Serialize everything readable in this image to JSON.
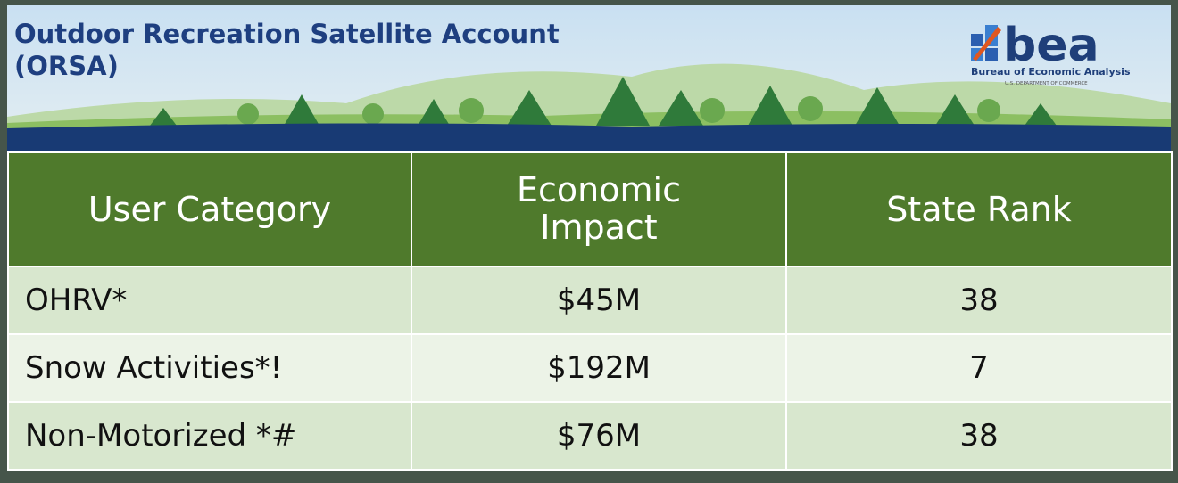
{
  "header": {
    "title": [
      "Outdoor Recreation Satellite Account",
      "(ORSA)"
    ],
    "logo": {
      "name": "bea",
      "subtitle": "Bureau of Economic Analysis",
      "department": "U.S. DEPARTMENT OF COMMERCE"
    }
  },
  "table": {
    "columns": [
      "User Category",
      "Economic Impact",
      "State Rank"
    ],
    "rows": [
      [
        "OHRV*",
        "$45M",
        "38"
      ],
      [
        "Snow Activities*!",
        "$192M",
        "7"
      ],
      [
        "Non-Motorized *#",
        "$76M",
        "38"
      ]
    ]
  }
}
